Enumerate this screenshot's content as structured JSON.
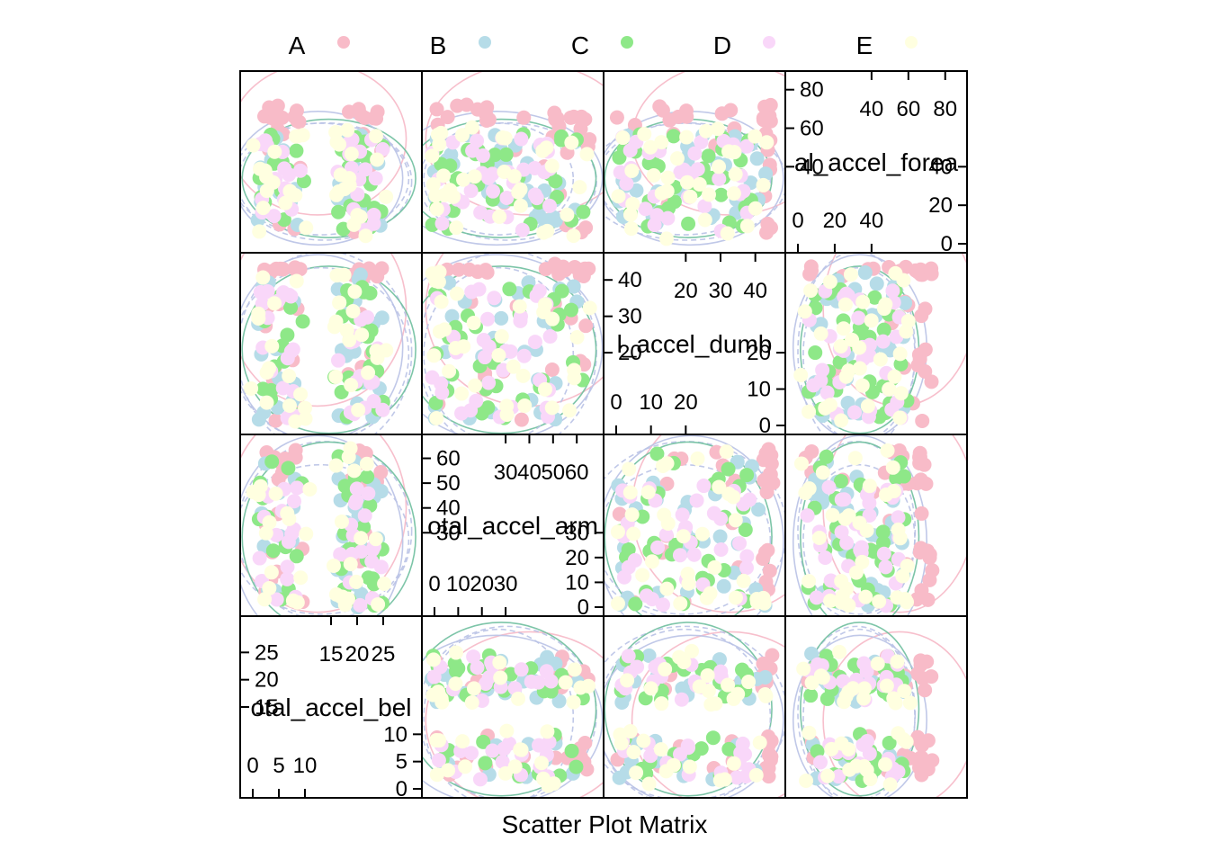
{
  "chart_data": {
    "type": "scatter",
    "subtype": "scatter-plot-matrix",
    "xlabel": "Scatter Plot Matrix",
    "legend": {
      "position": "top",
      "entries": [
        {
          "label": "A",
          "color": "#F8BBC8"
        },
        {
          "label": "B",
          "color": "#B6DCE8"
        },
        {
          "label": "C",
          "color": "#8EE888"
        },
        {
          "label": "D",
          "color": "#F9D7F9"
        },
        {
          "label": "E",
          "color": "#FFFFE0"
        }
      ]
    },
    "variables": [
      {
        "name": "total_accel_belt",
        "shown_label": "otal_accel_bel",
        "range": [
          0,
          30
        ],
        "low_ticks": [
          0,
          5,
          10
        ],
        "high_ticks": [
          15,
          20,
          25
        ]
      },
      {
        "name": "total_accel_arm",
        "shown_label": "otal_accel_arm",
        "range": [
          0,
          66
        ],
        "low_ticks": [
          0,
          10,
          20,
          30
        ],
        "high_ticks": [
          30,
          40,
          50,
          60
        ]
      },
      {
        "name": "total_accel_dumbbell",
        "shown_label": "l_accel_dumb",
        "range": [
          0,
          45
        ],
        "low_ticks": [
          0,
          10,
          20
        ],
        "high_ticks": [
          20,
          30,
          40
        ]
      },
      {
        "name": "total_accel_forearm",
        "shown_label": "al_accel_forea",
        "range": [
          0,
          85
        ],
        "low_ticks": [
          0,
          20,
          40
        ],
        "high_ticks": [
          40,
          60,
          80
        ]
      }
    ],
    "series": [
      {
        "name": "A",
        "clusters": {
          "total_accel_belt": [
            [
              2,
              10
            ],
            [
              18,
              24
            ]
          ],
          "total_accel_arm": [
            [
              3,
              42
            ],
            [
              44,
              62
            ]
          ],
          "total_accel_dumbbell": [
            [
              2,
              37
            ],
            [
              40,
              43
            ]
          ],
          "total_accel_forearm": [
            [
              3,
              60
            ],
            [
              62,
              70
            ]
          ]
        }
      },
      {
        "name": "B",
        "clusters": {
          "total_accel_belt": [
            [
              2,
              10
            ],
            [
              16,
              24
            ]
          ],
          "total_accel_arm": [
            [
              2,
              58
            ]
          ],
          "total_accel_dumbbell": [
            [
              2,
              42
            ]
          ],
          "total_accel_forearm": [
            [
              8,
              58
            ]
          ]
        }
      },
      {
        "name": "C",
        "clusters": {
          "total_accel_belt": [
            [
              2,
              10
            ],
            [
              16,
              24
            ]
          ],
          "total_accel_arm": [
            [
              2,
              60
            ]
          ],
          "total_accel_dumbbell": [
            [
              2,
              40
            ]
          ],
          "total_accel_forearm": [
            [
              10,
              60
            ]
          ]
        }
      },
      {
        "name": "D",
        "clusters": {
          "total_accel_belt": [
            [
              2,
              10
            ],
            [
              16,
              24
            ]
          ],
          "total_accel_arm": [
            [
              2,
              55
            ]
          ],
          "total_accel_dumbbell": [
            [
              2,
              38
            ]
          ],
          "total_accel_forearm": [
            [
              8,
              55
            ]
          ]
        }
      },
      {
        "name": "E",
        "clusters": {
          "total_accel_belt": [
            [
              1,
              11
            ],
            [
              15,
              25
            ]
          ],
          "total_accel_arm": [
            [
              2,
              62
            ]
          ],
          "total_accel_dumbbell": [
            [
              2,
              42
            ]
          ],
          "total_accel_forearm": [
            [
              5,
              62
            ]
          ]
        }
      }
    ],
    "grid": false
  }
}
